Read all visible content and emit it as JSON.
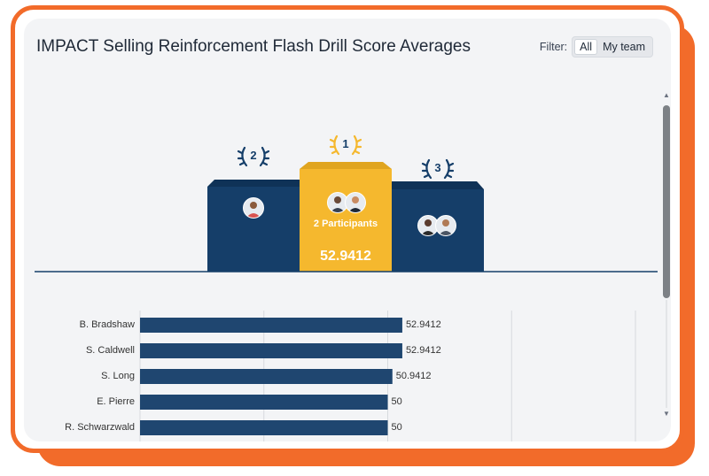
{
  "header": {
    "title": "IMPACT Selling Reinforcement Flash Drill Score Averages"
  },
  "filter": {
    "label": "Filter:",
    "options": [
      {
        "label": "All",
        "active": true
      },
      {
        "label": "My team",
        "active": false
      }
    ]
  },
  "podium": [
    {
      "rank": "2",
      "participants": null,
      "avatars": [
        "person-avatar"
      ],
      "color": "#153e69"
    },
    {
      "rank": "1",
      "participants": "2 Participants",
      "score": "52.9412",
      "avatars": [
        "person-avatar",
        "person-avatar"
      ],
      "color": "#f5b82e"
    },
    {
      "rank": "3",
      "participants": null,
      "avatars": [
        "person-avatar",
        "person-avatar"
      ],
      "color": "#153e69"
    }
  ],
  "colors": {
    "accent_orange": "#f26b2a",
    "bar_blue": "#1f4670",
    "gold": "#f5b82e",
    "navy": "#153e69"
  },
  "chart_data": {
    "type": "bar",
    "orientation": "horizontal",
    "categories": [
      "B. Bradshaw",
      "S. Caldwell",
      "S. Long",
      "E. Pierre",
      "R. Schwarzwald"
    ],
    "values": [
      52.9412,
      52.9412,
      50.9412,
      50,
      50
    ],
    "value_labels": [
      "52.9412",
      "52.9412",
      "50.9412",
      "50",
      "50"
    ],
    "xlim": [
      0,
      100
    ],
    "grid": true,
    "title": ""
  }
}
